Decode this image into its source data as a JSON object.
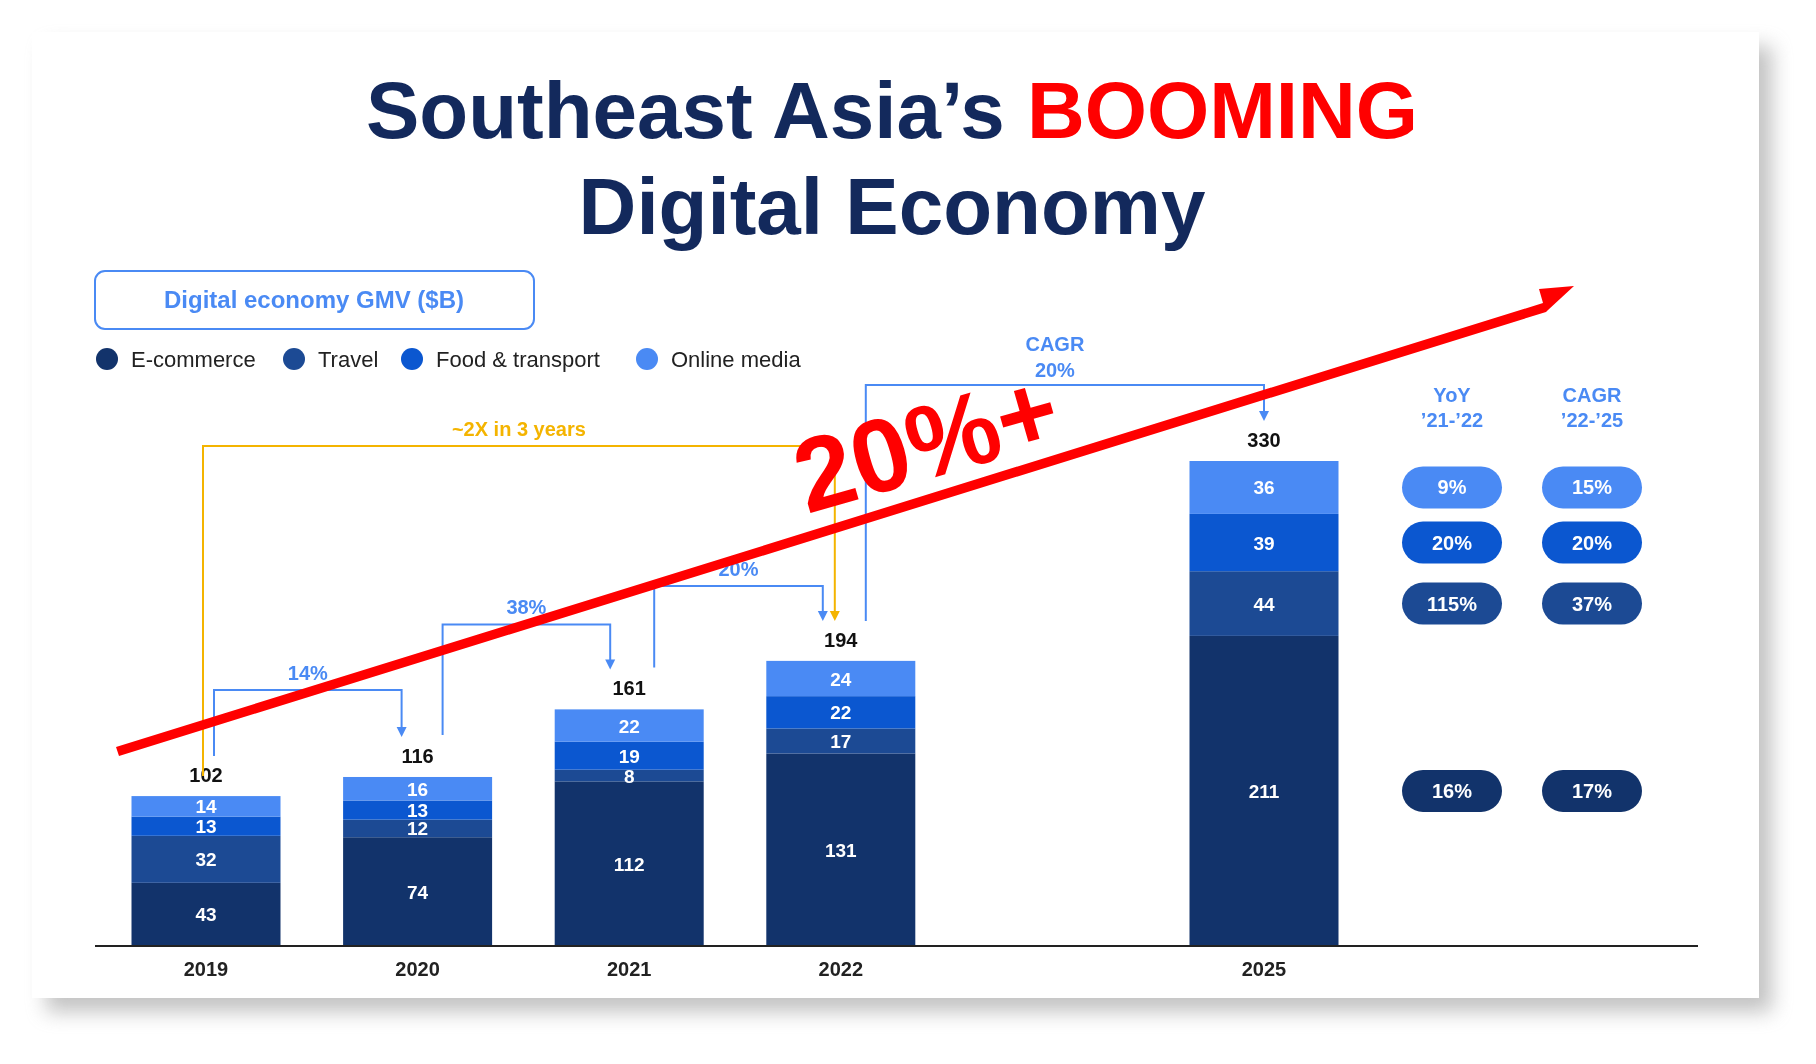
{
  "chart_data": {
    "type": "bar",
    "title": "Southeast Asia’s BOOMING Digital Economy",
    "subtitle": "Digital economy GMV ($B)",
    "categories": [
      "2019",
      "2020",
      "2021",
      "2022",
      null,
      "2025"
    ],
    "stacked": true,
    "data_labels": true,
    "legend": "top left",
    "tick_labels": "x",
    "series": [
      {
        "name": "E-commerce",
        "color": "#12336b",
        "values": [
          43,
          74,
          112,
          131,
          null,
          211
        ]
      },
      {
        "name": "Travel",
        "color": "#1c4a94",
        "values": [
          32,
          12,
          8,
          17,
          null,
          44
        ]
      },
      {
        "name": "Food & transport",
        "color": "#0b57d0",
        "values": [
          13,
          13,
          19,
          22,
          null,
          39
        ]
      },
      {
        "name": "Online media",
        "color": "#4a8af4",
        "values": [
          14,
          16,
          22,
          24,
          null,
          36
        ]
      }
    ],
    "totals": [
      "102",
      "116",
      "161",
      "194",
      null,
      "330"
    ],
    "annotations": [
      "~2X in 3 years",
      "14%",
      "38%",
      "20%",
      "CAGR 20%",
      "20%+",
      "YoY ’21-’22",
      "9%",
      "20%",
      "115%",
      "16%",
      "CAGR ’22-’25",
      "15%",
      "20%",
      "37%",
      "17%"
    ]
  }
}
